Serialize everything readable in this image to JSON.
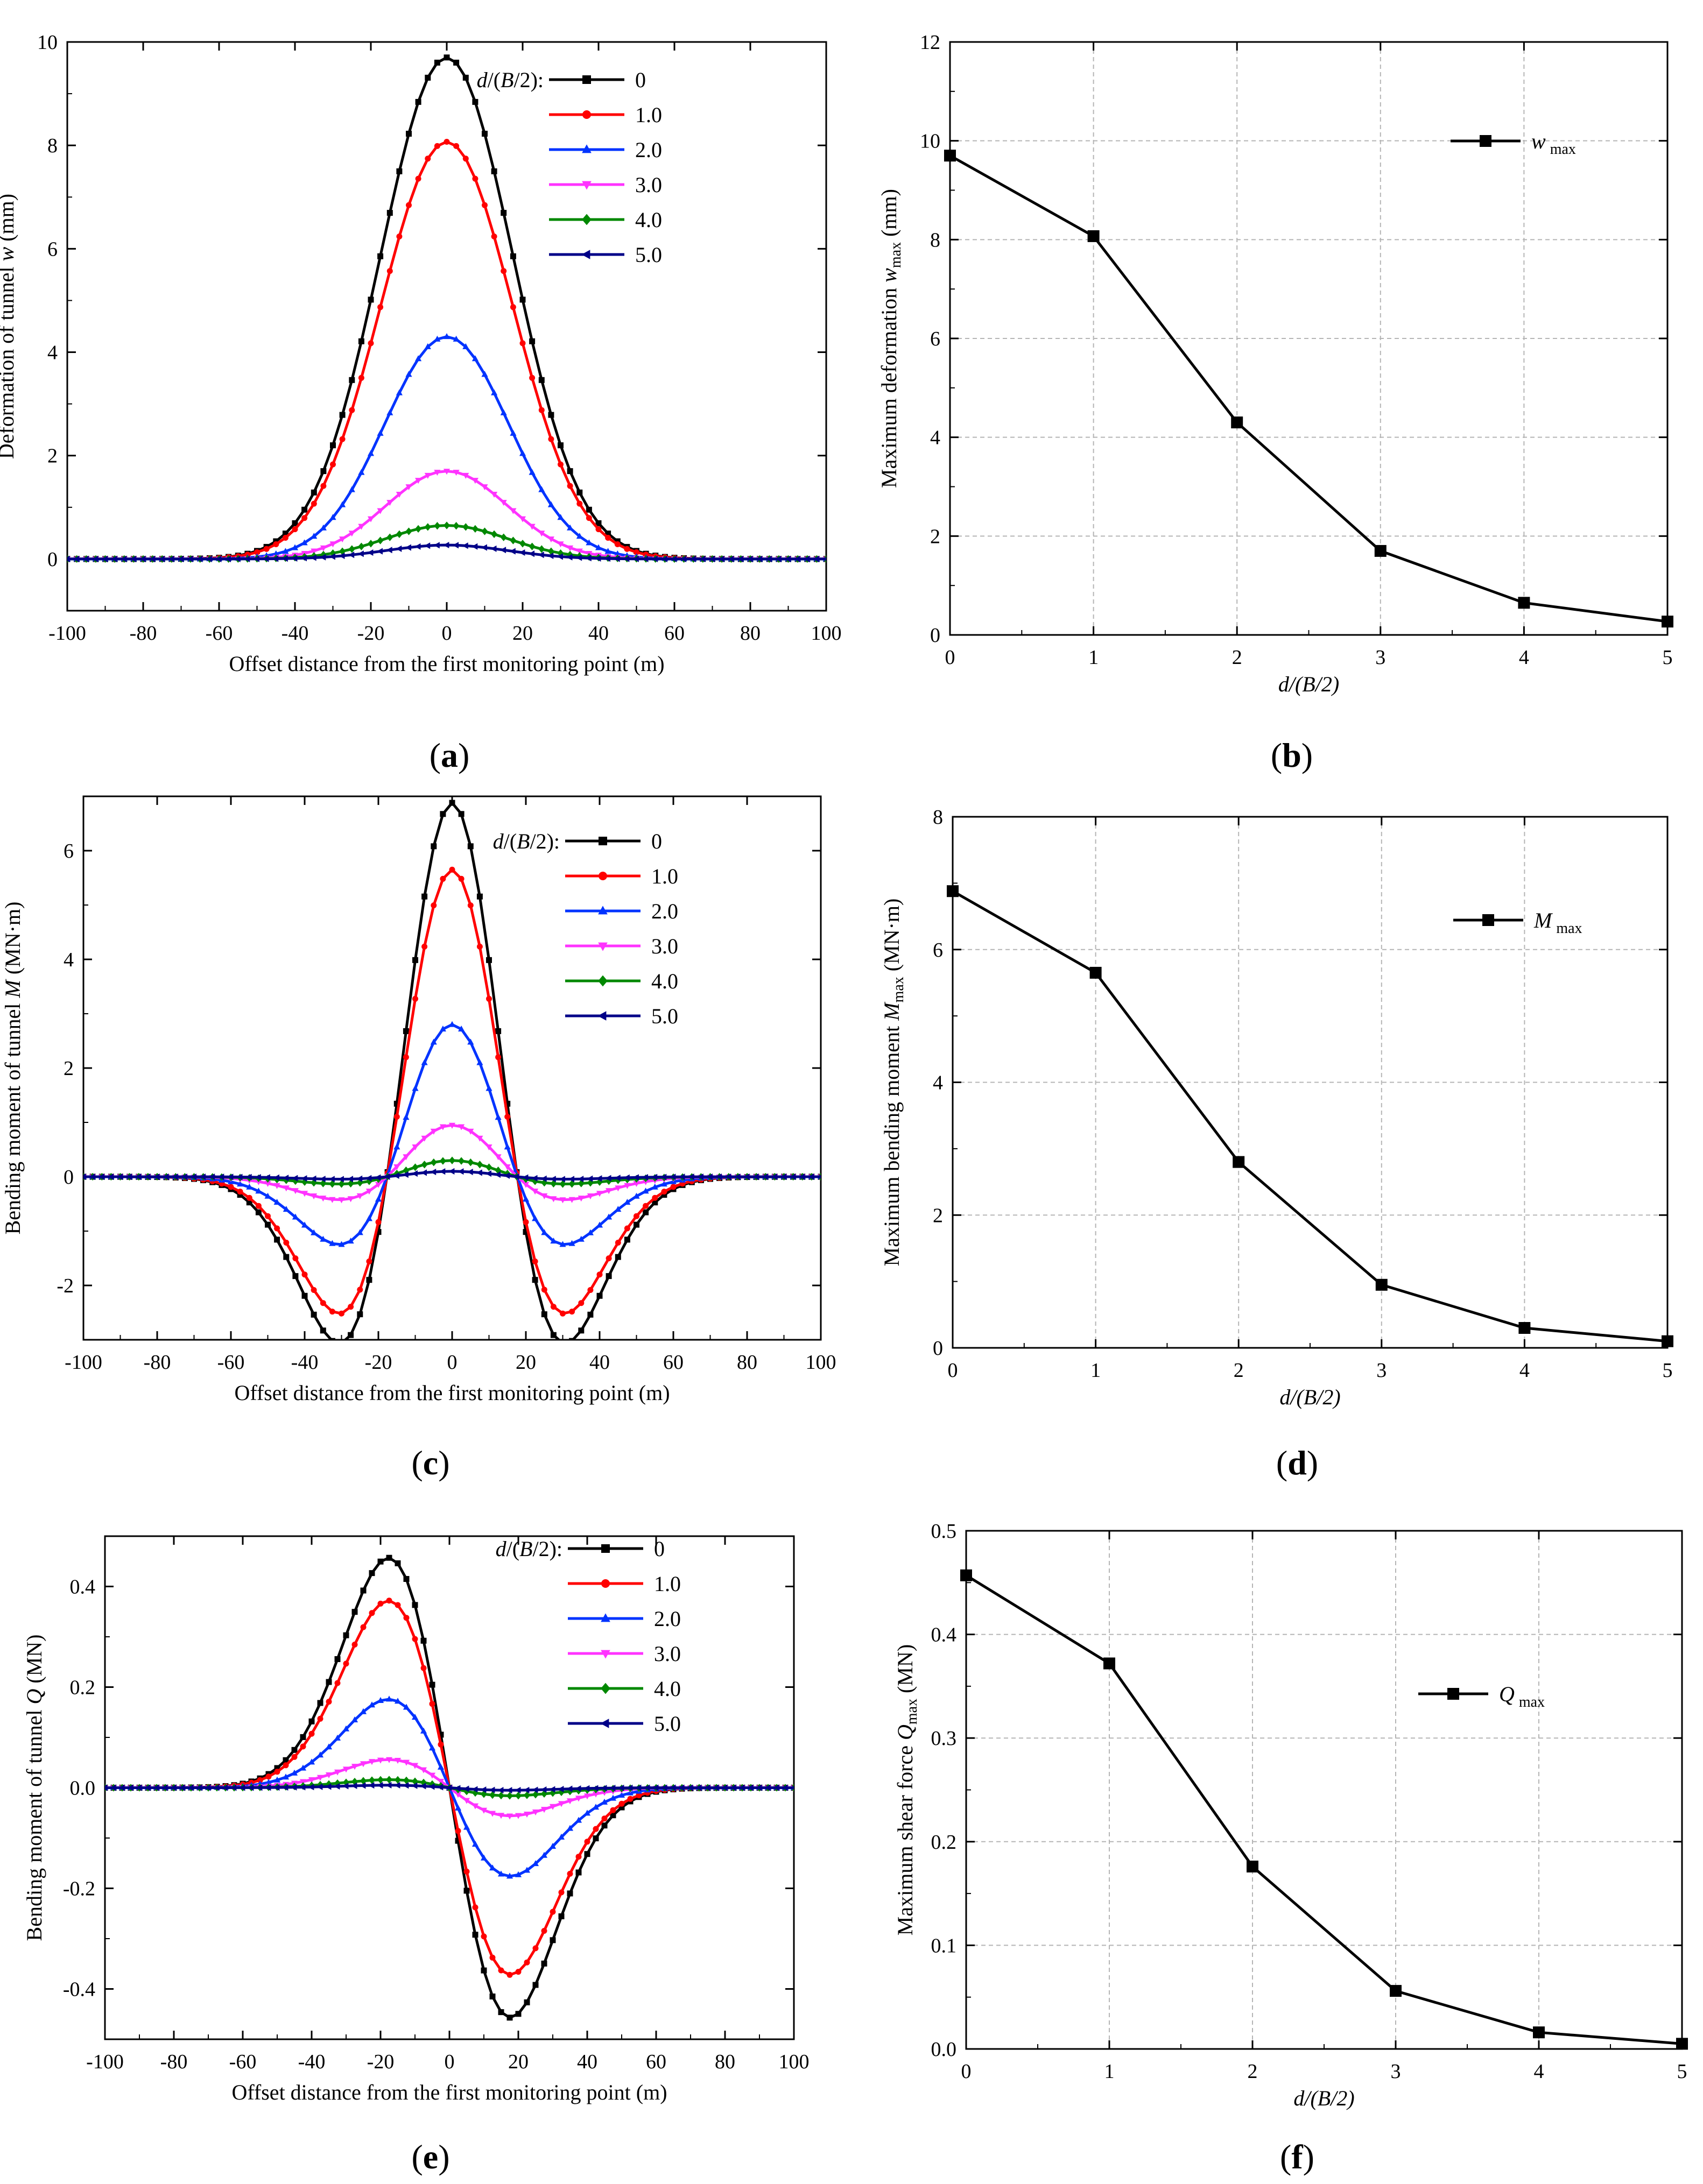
{
  "colors": {
    "s0": "#000000",
    "s1": "#ff0000",
    "s2": "#0033ff",
    "s3": "#ff33ff",
    "s4": "#008800",
    "s5": "#000088",
    "grid": "#b5b5b5"
  },
  "chart_data": [
    {
      "id": "a",
      "type": "line",
      "panel_label": "a",
      "xlabel": "Offset distance from the first monitoring point (m)",
      "ylabel": {
        "prefix": "Deformation of tunnel ",
        "var": "w",
        "suffix": " (mm)"
      },
      "xlim": [
        -100,
        100
      ],
      "ylim": [
        -1,
        10
      ],
      "xticks": [
        -100,
        -80,
        -60,
        -40,
        -20,
        0,
        20,
        40,
        60,
        80,
        100
      ],
      "yticks": [
        0,
        2,
        4,
        6,
        8,
        10
      ],
      "legend": {
        "title": "d/(B/2):",
        "position": "top-right"
      },
      "curve_model": "deflection",
      "x_step": 2.5,
      "series": [
        {
          "name": "0",
          "peak": 9.7,
          "width": 25.0,
          "marker": "square"
        },
        {
          "name": "1.0",
          "peak": 8.07,
          "width": 25.0,
          "marker": "circle"
        },
        {
          "name": "2.0",
          "peak": 4.3,
          "width": 23.5,
          "marker": "triangle-up"
        },
        {
          "name": "3.0",
          "peak": 1.7,
          "width": 23.0,
          "marker": "triangle-down"
        },
        {
          "name": "4.0",
          "peak": 0.65,
          "width": 23.0,
          "marker": "diamond"
        },
        {
          "name": "5.0",
          "peak": 0.27,
          "width": 23.0,
          "marker": "triangle-left"
        }
      ]
    },
    {
      "id": "b",
      "type": "line",
      "panel_label": "b",
      "xlabel": "d/(B/2)",
      "ylabel": {
        "prefix": "Maximum deformation ",
        "var": "w",
        "sub": "max",
        "suffix": " (mm)"
      },
      "xlim": [
        0,
        5
      ],
      "ylim": [
        0,
        12
      ],
      "xticks": [
        0,
        1,
        2,
        3,
        4,
        5
      ],
      "yticks": [
        0,
        2,
        4,
        6,
        8,
        10,
        12
      ],
      "grid": true,
      "legend": {
        "var": "w",
        "sub": "max",
        "position": "top-right"
      },
      "x": [
        0,
        1,
        2,
        3,
        4,
        5
      ],
      "values": [
        9.7,
        8.07,
        4.3,
        1.7,
        0.65,
        0.27
      ]
    },
    {
      "id": "c",
      "type": "line",
      "panel_label": "c",
      "xlabel": "Offset distance from the first monitoring point (m)",
      "ylabel": {
        "prefix": "Bending moment of tunnel ",
        "var": "M",
        "suffix": " (MN·m)"
      },
      "xlim": [
        -100,
        100
      ],
      "ylim": [
        -3,
        7
      ],
      "xticks": [
        -100,
        -80,
        -60,
        -40,
        -20,
        0,
        20,
        40,
        60,
        80,
        100
      ],
      "yticks": [
        -2,
        0,
        2,
        4,
        6
      ],
      "legend": {
        "title": "d/(B/2):",
        "position": "top-right"
      },
      "curve_model": "moment",
      "x_step": 2.5,
      "series": [
        {
          "name": "0",
          "peak": 6.88,
          "width": 25.0,
          "marker": "square"
        },
        {
          "name": "1.0",
          "peak": 5.65,
          "width": 25.0,
          "marker": "circle"
        },
        {
          "name": "2.0",
          "peak": 2.8,
          "width": 25.0,
          "marker": "triangle-up"
        },
        {
          "name": "3.0",
          "peak": 0.95,
          "width": 25.0,
          "marker": "triangle-down"
        },
        {
          "name": "4.0",
          "peak": 0.3,
          "width": 25.0,
          "marker": "diamond"
        },
        {
          "name": "5.0",
          "peak": 0.1,
          "width": 25.0,
          "marker": "triangle-left"
        }
      ]
    },
    {
      "id": "d",
      "type": "line",
      "panel_label": "d",
      "xlabel": "d/(B/2)",
      "ylabel": {
        "prefix": "Maximum bending moment ",
        "var": "M",
        "sub": "max",
        "suffix": " (MN·m)"
      },
      "xlim": [
        0,
        5
      ],
      "ylim": [
        0,
        8
      ],
      "xticks": [
        0,
        1,
        2,
        3,
        4,
        5
      ],
      "yticks": [
        0,
        2,
        4,
        6,
        8
      ],
      "grid": true,
      "legend": {
        "var": "M",
        "sub": "max",
        "position": "top-right"
      },
      "x": [
        0,
        1,
        2,
        3,
        4,
        5
      ],
      "values": [
        6.88,
        5.65,
        2.8,
        0.95,
        0.3,
        0.1
      ]
    },
    {
      "id": "e",
      "type": "line",
      "panel_label": "e",
      "xlabel": "Offset distance from the first monitoring point (m)",
      "ylabel": {
        "prefix": "Bending moment of tunnel ",
        "var": "Q",
        "suffix": " (MN)"
      },
      "xlim": [
        -100,
        100
      ],
      "ylim": [
        -0.5,
        0.5
      ],
      "xticks": [
        -100,
        -80,
        -60,
        -40,
        -20,
        0,
        20,
        40,
        60,
        80,
        100
      ],
      "yticks": [
        -0.4,
        -0.2,
        0.0,
        0.2,
        0.4
      ],
      "legend": {
        "title": "d/(B/2):",
        "position": "top-right"
      },
      "curve_model": "shear",
      "x_step": 2.5,
      "series": [
        {
          "name": "0",
          "peak": 0.457,
          "width": 25.0,
          "marker": "square"
        },
        {
          "name": "1.0",
          "peak": 0.372,
          "width": 25.0,
          "marker": "circle"
        },
        {
          "name": "2.0",
          "peak": 0.176,
          "width": 25.0,
          "marker": "triangle-up"
        },
        {
          "name": "3.0",
          "peak": 0.056,
          "width": 25.0,
          "marker": "triangle-down"
        },
        {
          "name": "4.0",
          "peak": 0.016,
          "width": 25.0,
          "marker": "diamond"
        },
        {
          "name": "5.0",
          "peak": 0.005,
          "width": 25.0,
          "marker": "triangle-left"
        }
      ]
    },
    {
      "id": "f",
      "type": "line",
      "panel_label": "f",
      "xlabel": "d/(B/2)",
      "ylabel": {
        "prefix": "Maximum shear force ",
        "var": "Q",
        "sub": "max",
        "suffix": " (MN)"
      },
      "xlim": [
        0,
        5
      ],
      "ylim": [
        0,
        0.5
      ],
      "xticks": [
        0,
        1,
        2,
        3,
        4,
        5
      ],
      "yticks": [
        0.0,
        0.1,
        0.2,
        0.3,
        0.4,
        0.5
      ],
      "grid": true,
      "legend": {
        "var": "Q",
        "sub": "max",
        "position": "right"
      },
      "x": [
        0,
        1,
        2,
        3,
        4,
        5
      ],
      "values": [
        0.457,
        0.372,
        0.176,
        0.056,
        0.016,
        0.005
      ]
    }
  ]
}
